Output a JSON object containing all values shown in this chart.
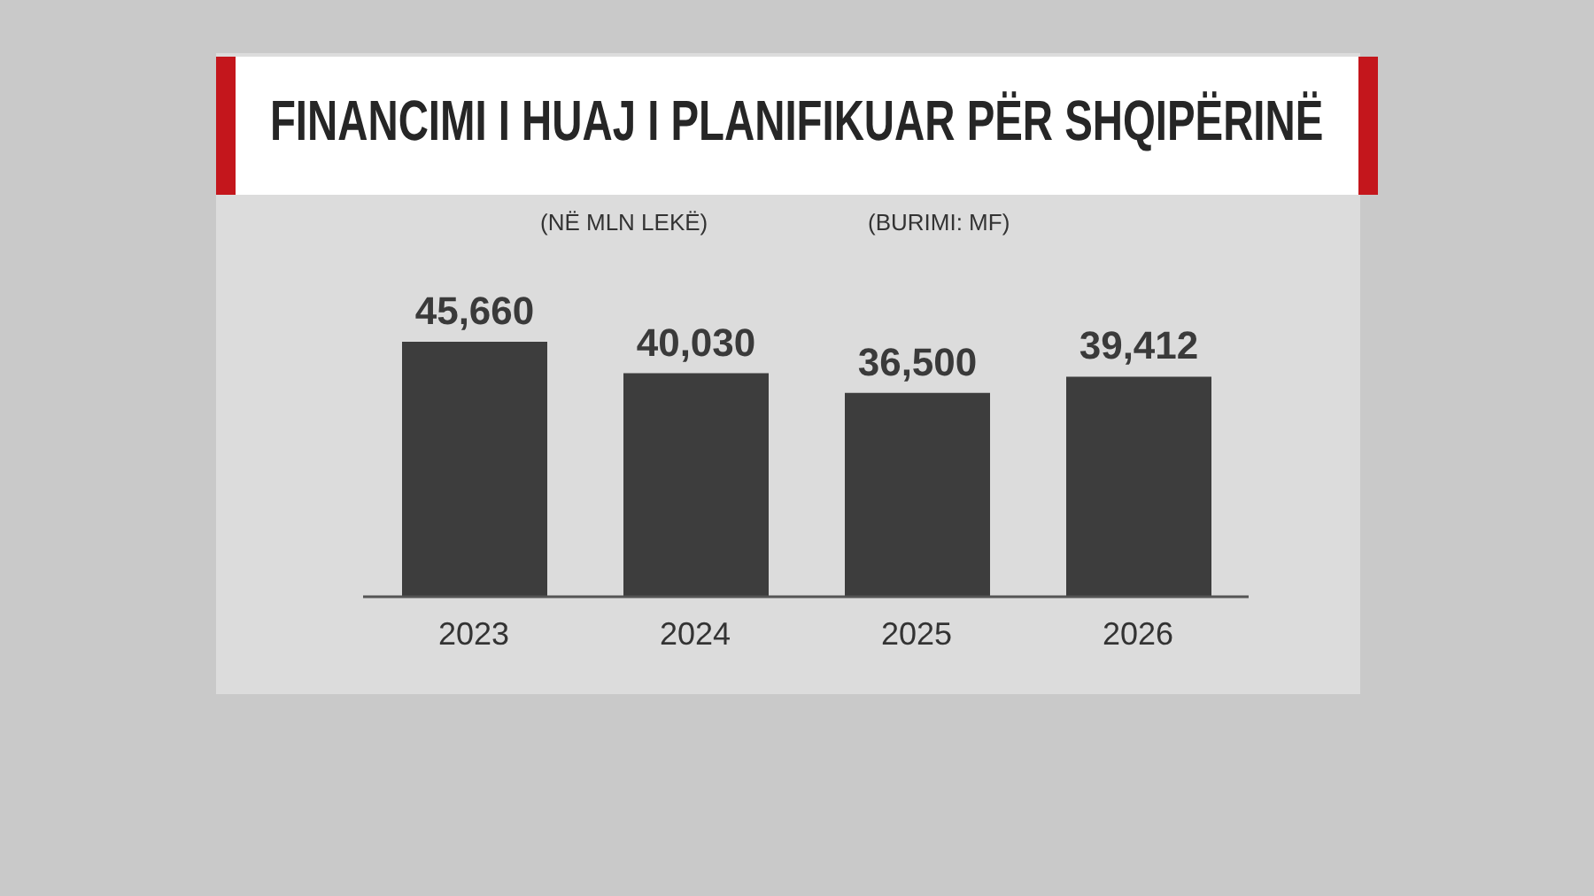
{
  "chart_data": {
    "type": "bar",
    "title": "FINANCIMI I HUAJ I PLANIFIKUAR PËR SHQIPËRINË",
    "subtitle": "(NË MLN LEKË)",
    "annotations": [
      "(BURIMI: MF)"
    ],
    "categories": [
      "2023",
      "2024",
      "2025",
      "2026"
    ],
    "values": [
      45660,
      40030,
      36500,
      39412
    ],
    "color": "#3d3d3d",
    "value_labels": [
      "45,660",
      "40,030",
      "36,500",
      "39,412"
    ]
  }
}
